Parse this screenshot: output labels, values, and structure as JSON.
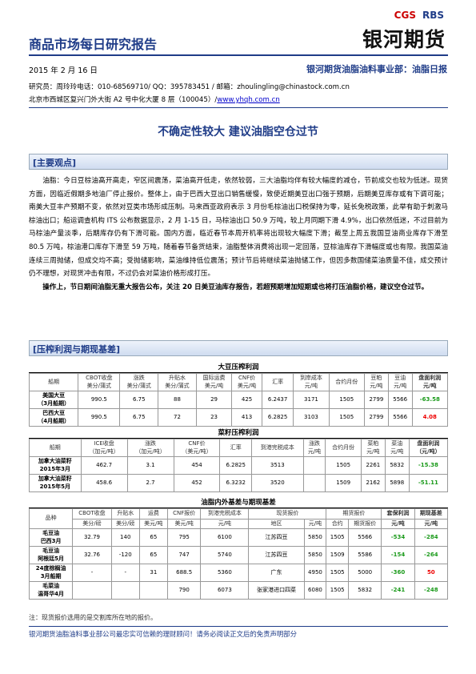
{
  "header": {
    "report_name": "商品市场每日研究报告",
    "logo_cgs": "CGS",
    "logo_rbs": "RBS",
    "logo_name": "银河期货",
    "date": "2015 年 2 月 16 日",
    "department": "银河期货油脂油料事业部：油脂日报",
    "researcher": "研究员：周玲玲电话：010-68569710/ QQ：395783451 / 邮箱：zhoulingling@chinastock.com.cn",
    "address": "北京市西城区复兴门外大街 A2 号中化大厦 8 层（100045）/",
    "website": "www.yhqh.com.cn"
  },
  "title": "不确定性较大 建议油脂空仓过节",
  "views": {
    "heading": "[主要观点]",
    "paragraph": "油脂：今日豆棕油高开高走，窄区间震荡，菜油高开低走，依然较弱，三大油脂均伴有较大幅度的减仓，节前成交也较为低迷。现货方面，因临近假期多地油厂停止报价。整体上，由于巴西大豆出口销售缓慢，致使近期美豆出口强于预期，后期美豆库存或有下调可能；南美大豆丰产预期不变，依然对豆类市场形成压制。马来西亚政府表示 3 月份毛棕油出口税保持为零，延长免税政策，此举有助于刺激马棕油出口；船运调查机构 ITS 公布数据显示，2 月 1-15 日，马棕油出口 50.9 万吨，较上月同期下滑 4.9%，出口依然低迷，不过目前为马棕油产量淡季，后期库存仍有下滑可能。国内方面，临近春节本周开机率将出现较大幅度下滑；截至上周五我国豆油商业库存下滑至 80.5 万吨，棕油港口库存下滑至 59 万吨，随着春节备货结束，油脂整体消费将出现一定回落，豆棕油库存下滑幅度或也有限。我国菜油连续三周抛储，但成交均不高；受抛储影响，菜油维持低位震荡；预计节后将继续菜油抛储工作，但因多数国储菜油质量不佳，成交预计仍不理想，对现货冲击有限，不过仍会对菜油价格形成打压。",
    "operation": "操作上，节日期间油脂无重大报告公布，关注 20 日美豆油库存报告，若超预期增加短期或也将打压油脂价格，建议空仓过节。"
  },
  "profit": {
    "heading": "[压榨利润与期现基差]",
    "tables": [
      {
        "title": "大豆压榨利润",
        "header": [
          [
            "船期",
            "CBOT收盘\n美分/蒲式",
            "涨跌\n美分/蒲式",
            "升贴水\n美分/蒲式",
            "国际运费\n美元/吨",
            "CNF价\n美元/吨",
            "汇率",
            "到岸成本\n元/吨",
            "合约月份",
            "豆粕\n元/吨",
            "豆油\n元/吨",
            "盘面利润\n元/吨"
          ]
        ],
        "rows": [
          [
            "美国大豆\n（3月船期）",
            "990.5",
            "6.75",
            "88",
            "29",
            "425",
            "6.2437",
            "3171",
            "1505",
            "2799",
            "5566",
            "-63.58"
          ],
          [
            "巴西大豆\n（4月船期）",
            "990.5",
            "6.75",
            "72",
            "23",
            "413",
            "6.2825",
            "3103",
            "1505",
            "2799",
            "5566",
            "4.08"
          ]
        ]
      },
      {
        "title": "菜籽压榨利润",
        "header": [
          [
            "船期",
            "ICE收盘\n（加元/吨）",
            "涨跌\n（加元/吨）",
            "CNF价\n（美元/吨）",
            "汇率",
            "到港完税成本",
            "涨跌\n元/吨",
            "合约月份",
            "菜粕\n元/吨",
            "菜油\n元/吨",
            "盘面利润\n（元/吨）"
          ]
        ],
        "rows": [
          [
            "加拿大油菜籽\n2015年3月",
            "462.7",
            "3.1",
            "454",
            "6.2825",
            "3513",
            null,
            "1505",
            "2261",
            "5832",
            "-15.38"
          ],
          [
            "加拿大油菜籽\n2015年5月",
            "458.6",
            "2.7",
            "452",
            "6.3232",
            "3520",
            null,
            "1509",
            "2162",
            "5898",
            "-51.11"
          ]
        ]
      },
      {
        "title": "油脂内外基差与期现基差",
        "header": [
          [
            "品种",
            "CBOT收盘",
            "升贴水",
            "运费",
            "CNF报价",
            "到港完税成本",
            "现货报价",
            "期货报价",
            "套保利润",
            "期现基差"
          ],
          [
            "美分/磅",
            "美分/磅",
            "美元/吨",
            "美元/吨",
            "元/吨",
            "地区",
            "元/吨",
            "合约",
            "期货报价",
            "元/吨",
            "元/吨"
          ]
        ],
        "rows": [
          [
            "毛豆油\n巴西3月",
            "32.79",
            "140",
            "65",
            "795",
            "6100",
            "江苏四豆",
            "5850",
            "1505",
            "5566",
            "-534",
            "-284"
          ],
          [
            "毛豆油\n阿根廷5月",
            "32.76",
            "-120",
            "65",
            "747",
            "5740",
            "江苏四豆",
            "5850",
            "1509",
            "5586",
            "-154",
            "-264"
          ],
          [
            "24度棕榈油\n3月船期",
            "-",
            "-",
            "31",
            "688.5",
            "5360",
            "广东",
            "4950",
            "1505",
            "5000",
            "-360",
            "50"
          ],
          [
            "毛菜油\n温哥华4月",
            null,
            null,
            null,
            "790",
            "6073",
            "张家港进口四菜",
            "6080",
            "1505",
            "5832",
            "-241",
            "-248"
          ]
        ]
      }
    ],
    "note": "注：现货报价选用的是交割库所在地的报价。"
  },
  "footer": "银河期货油脂油料事业部公司最忠实可信赖的理财顾问！请务必阅读正文后的免责声明部分"
}
